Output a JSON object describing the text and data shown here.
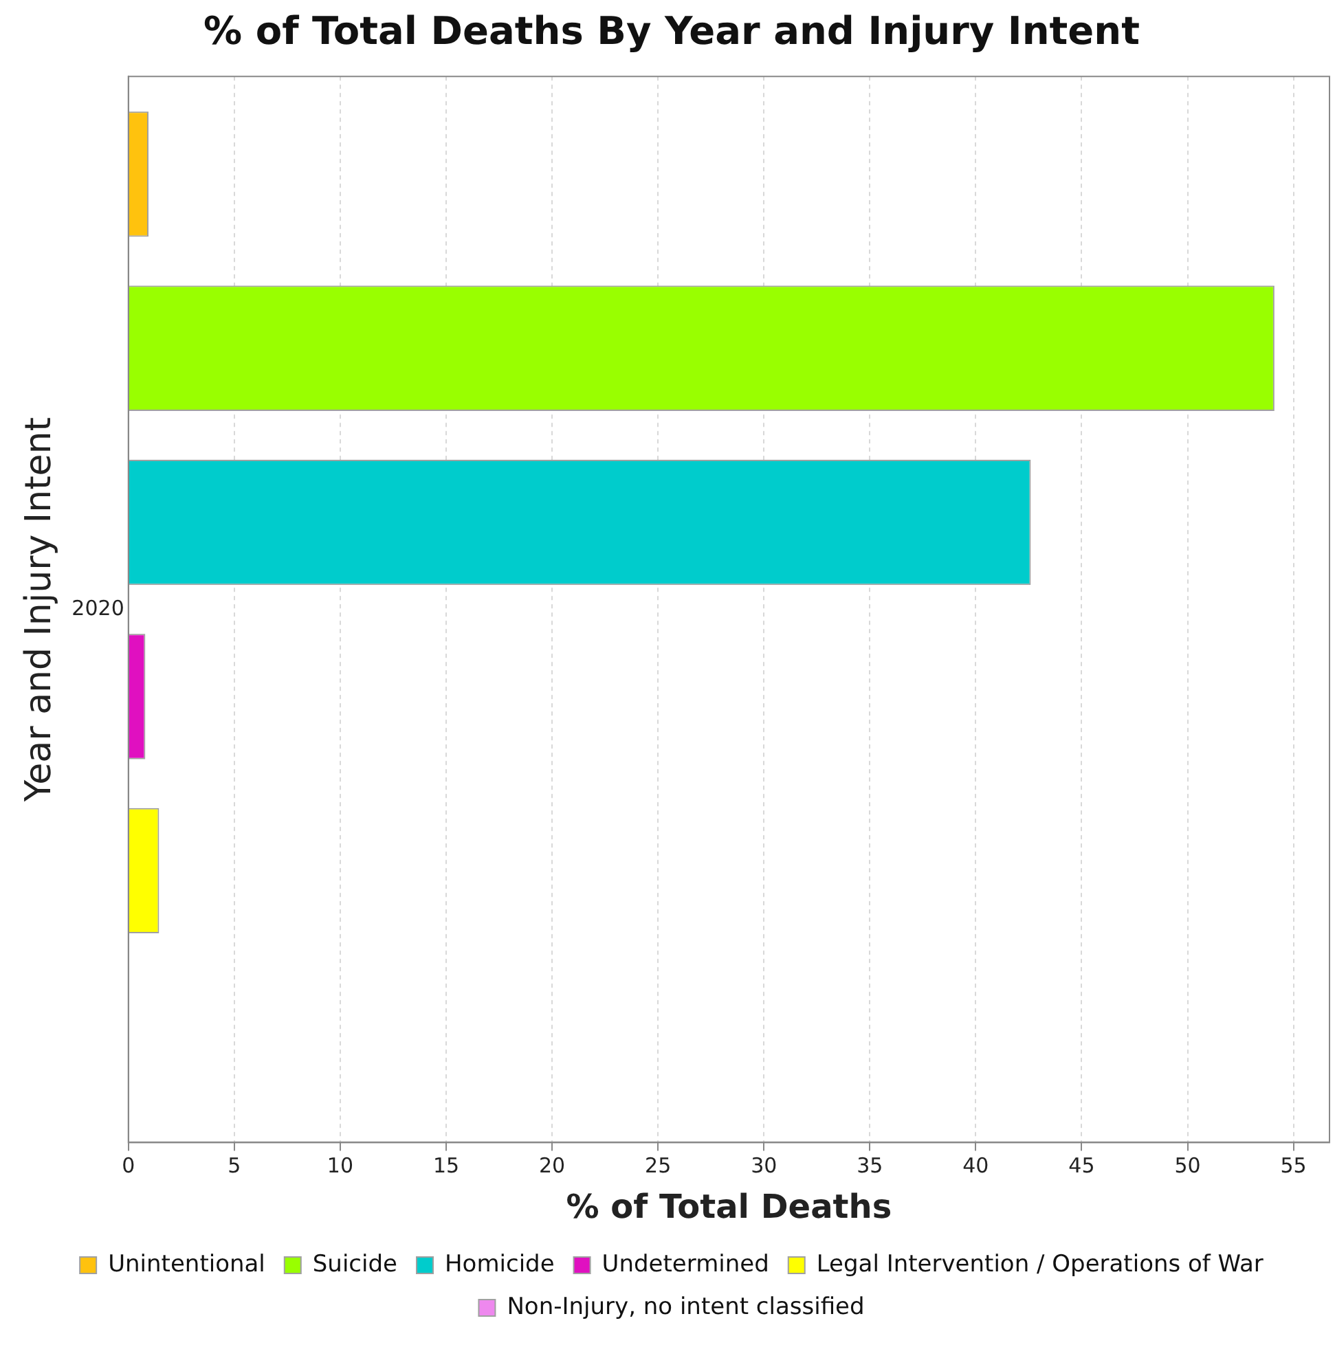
{
  "chart_data": {
    "type": "bar",
    "orientation": "horizontal",
    "title": "% of Total Deaths By Year and Injury Intent",
    "xlabel": "% of Total Deaths",
    "ylabel": "Year and Injury Intent",
    "categories": [
      "2020"
    ],
    "series": [
      {
        "name": "Unintentional",
        "color": "#ffc20e",
        "values": [
          0.95
        ]
      },
      {
        "name": "Suicide",
        "color": "#99ff00",
        "values": [
          54.1
        ]
      },
      {
        "name": "Homicide",
        "color": "#00cccc",
        "values": [
          42.6
        ]
      },
      {
        "name": "Undetermined",
        "color": "#e010c0",
        "values": [
          0.8
        ]
      },
      {
        "name": "Legal Intervention / Operations of War",
        "color": "#ffff00",
        "values": [
          1.45
        ]
      },
      {
        "name": "Non-Injury, no intent classified",
        "color": "#ee88ee",
        "values": [
          null
        ]
      }
    ],
    "xlim": [
      0,
      56.7
    ],
    "xticks": [
      0,
      5,
      10,
      15,
      20,
      25,
      30,
      35,
      40,
      45,
      50,
      55
    ],
    "grid": "x",
    "legend": "bottom"
  }
}
